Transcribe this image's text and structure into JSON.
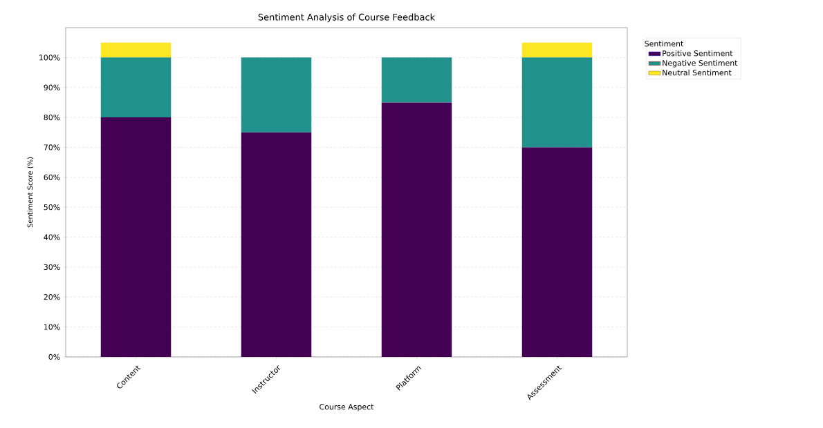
{
  "chart_data": {
    "type": "bar",
    "stacked": true,
    "title": "Sentiment Analysis of Course Feedback",
    "xlabel": "Course Aspect",
    "ylabel": "Sentiment Score (%)",
    "legend_title": "Sentiment",
    "categories": [
      "Content",
      "Instructor",
      "Platform",
      "Assessment"
    ],
    "series": [
      {
        "name": "Positive Sentiment",
        "color": "#440154",
        "values": [
          80,
          75,
          85,
          70
        ]
      },
      {
        "name": "Negative Sentiment",
        "color": "#21918c",
        "values": [
          20,
          25,
          15,
          30
        ]
      },
      {
        "name": "Neutral Sentiment",
        "color": "#fde725",
        "values": [
          5,
          0,
          0,
          5
        ]
      }
    ],
    "ylim": [
      0,
      110
    ],
    "yticks": [
      {
        "value": 0,
        "label": "0%"
      },
      {
        "value": 10,
        "label": "10%"
      },
      {
        "value": 20,
        "label": "20%"
      },
      {
        "value": 30,
        "label": "30%"
      },
      {
        "value": 40,
        "label": "40%"
      },
      {
        "value": 50,
        "label": "50%"
      },
      {
        "value": 60,
        "label": "60%"
      },
      {
        "value": 70,
        "label": "70%"
      },
      {
        "value": 80,
        "label": "80%"
      },
      {
        "value": 90,
        "label": "90%"
      },
      {
        "value": 100,
        "label": "100%"
      }
    ],
    "grid": "y",
    "legend": "top right"
  }
}
